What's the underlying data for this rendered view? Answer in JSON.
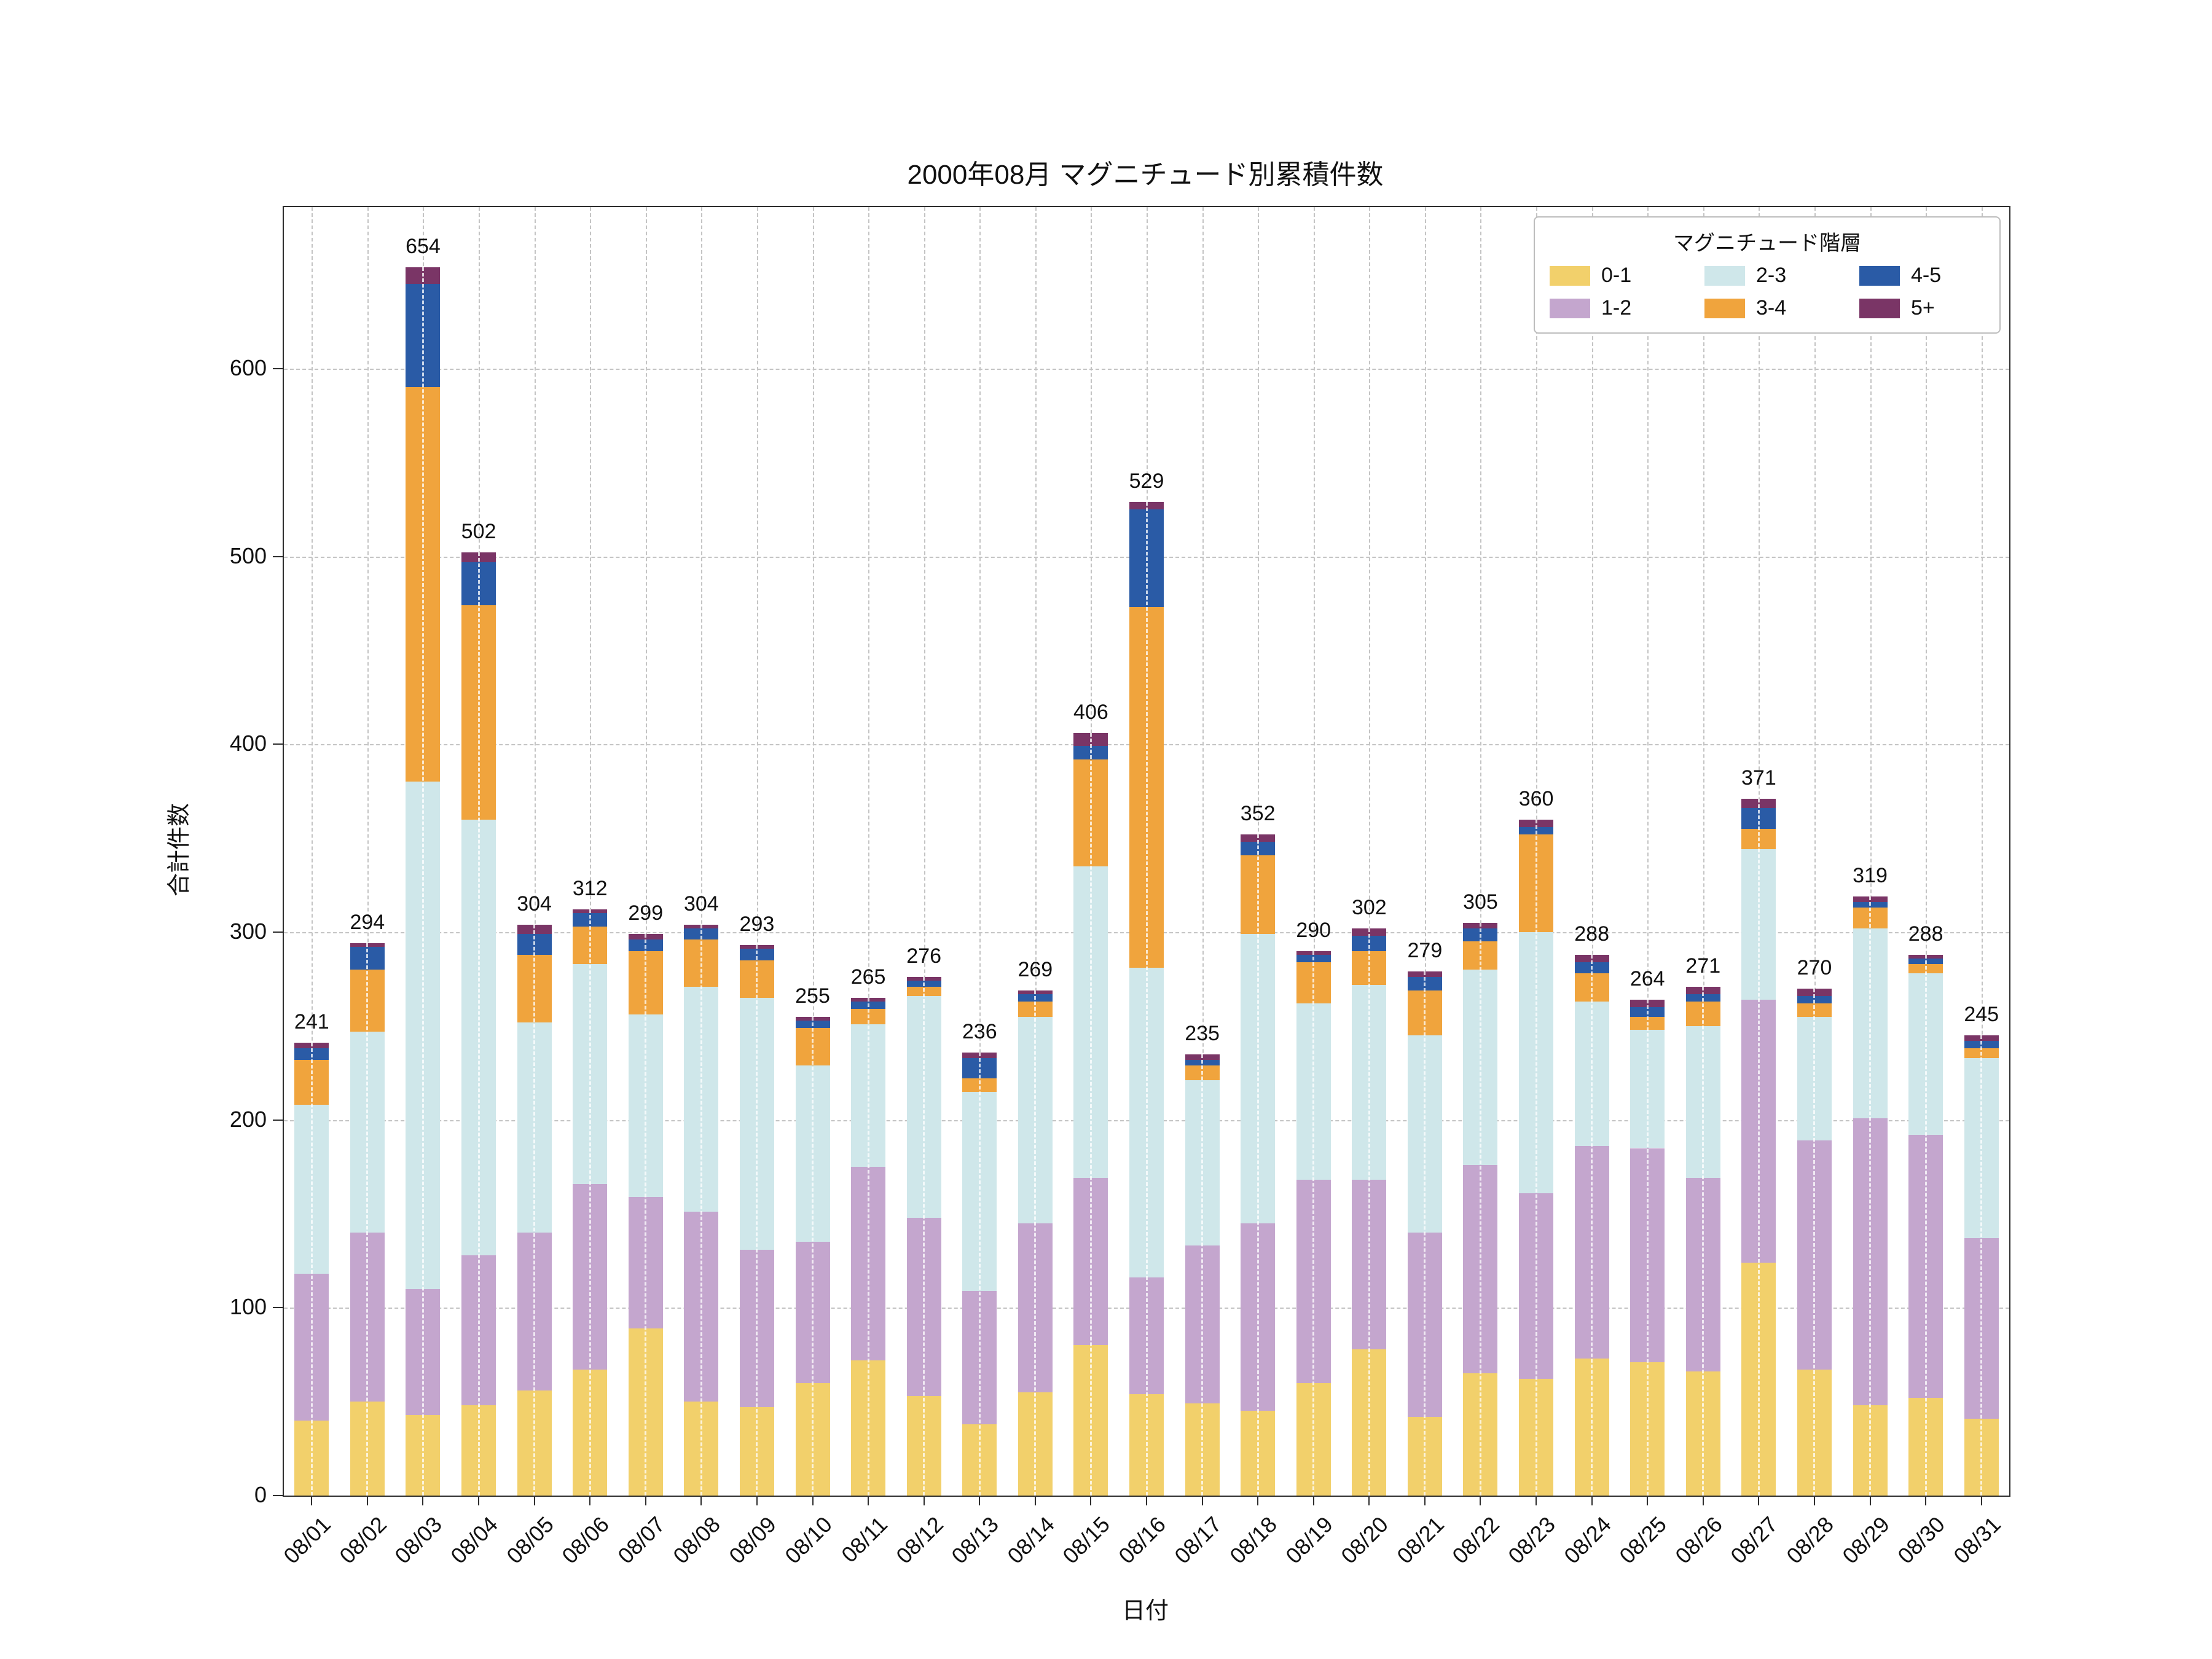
{
  "legend": {
    "title": "マグニチュード階層",
    "entries": [
      {
        "label": "0-1",
        "color": "#f2d06b"
      },
      {
        "label": "1-2",
        "color": "#c4a6ce"
      },
      {
        "label": "2-3",
        "color": "#cfe7ea"
      },
      {
        "label": "3-4",
        "color": "#f0a43d"
      },
      {
        "label": "4-5",
        "color": "#2a5ba6"
      },
      {
        "label": "5+",
        "color": "#7a3566"
      }
    ]
  },
  "chart_data": {
    "type": "bar",
    "stacked": true,
    "title": "2000年08月 マグニチュード別累積件数",
    "xlabel": "日付",
    "ylabel": "合計件数",
    "grid": true,
    "legend_position": "upper right",
    "ylim": [
      0,
      686
    ],
    "yticks": [
      0,
      100,
      200,
      300,
      400,
      500,
      600
    ],
    "categories": [
      "08/01",
      "08/02",
      "08/03",
      "08/04",
      "08/05",
      "08/06",
      "08/07",
      "08/08",
      "08/09",
      "08/10",
      "08/11",
      "08/12",
      "08/13",
      "08/14",
      "08/15",
      "08/16",
      "08/17",
      "08/18",
      "08/19",
      "08/20",
      "08/21",
      "08/22",
      "08/23",
      "08/24",
      "08/25",
      "08/26",
      "08/27",
      "08/28",
      "08/29",
      "08/30",
      "08/31"
    ],
    "series": [
      {
        "name": "0-1",
        "color": "#f2d06b",
        "values": [
          40,
          50,
          43,
          48,
          56,
          67,
          89,
          50,
          47,
          60,
          72,
          53,
          38,
          55,
          80,
          54,
          49,
          45,
          60,
          78,
          42,
          65,
          62,
          73,
          71,
          66,
          124,
          67,
          48,
          52,
          41
        ]
      },
      {
        "name": "1-2",
        "color": "#c4a6ce",
        "values": [
          78,
          90,
          67,
          80,
          84,
          99,
          70,
          101,
          84,
          75,
          103,
          95,
          71,
          90,
          89,
          62,
          84,
          100,
          108,
          90,
          98,
          111,
          99,
          113,
          114,
          103,
          140,
          122,
          153,
          140,
          96
        ]
      },
      {
        "name": "2-3",
        "color": "#cfe7ea",
        "values": [
          90,
          107,
          270,
          232,
          112,
          117,
          97,
          120,
          134,
          94,
          76,
          118,
          106,
          110,
          166,
          165,
          88,
          154,
          94,
          104,
          105,
          104,
          139,
          77,
          63,
          81,
          80,
          66,
          101,
          86,
          96
        ]
      },
      {
        "name": "3-4",
        "color": "#f0a43d",
        "values": [
          24,
          33,
          210,
          114,
          36,
          20,
          34,
          25,
          20,
          20,
          8,
          5,
          7,
          8,
          57,
          192,
          8,
          42,
          22,
          18,
          24,
          15,
          52,
          15,
          7,
          13,
          11,
          7,
          11,
          5,
          5
        ]
      },
      {
        "name": "4-5",
        "color": "#2a5ba6",
        "values": [
          6,
          12,
          55,
          23,
          11,
          7,
          6,
          6,
          6,
          4,
          4,
          3,
          11,
          4,
          7,
          52,
          3,
          7,
          4,
          8,
          7,
          7,
          4,
          6,
          5,
          4,
          11,
          4,
          3,
          3,
          4
        ]
      },
      {
        "name": "5+",
        "color": "#7a3566",
        "values": [
          3,
          2,
          9,
          5,
          5,
          2,
          3,
          2,
          2,
          2,
          2,
          2,
          3,
          2,
          7,
          4,
          3,
          4,
          2,
          4,
          3,
          3,
          4,
          4,
          4,
          4,
          5,
          4,
          3,
          2,
          3
        ]
      }
    ],
    "totals": [
      241,
      294,
      654,
      502,
      304,
      312,
      299,
      304,
      293,
      255,
      265,
      276,
      236,
      269,
      406,
      529,
      235,
      352,
      290,
      302,
      279,
      305,
      360,
      288,
      264,
      271,
      371,
      270,
      319,
      288,
      245
    ]
  }
}
